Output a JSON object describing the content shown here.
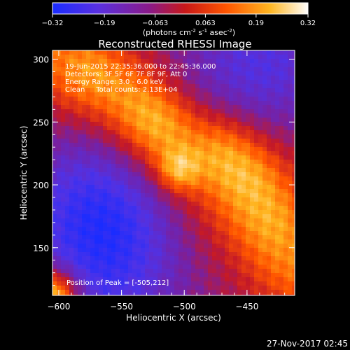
{
  "colorbar": {
    "ticks": [
      "-0.32",
      "-0.19",
      "-0.063",
      "0.063",
      "0.19",
      "0.32"
    ],
    "tick_values": [
      -0.32,
      -0.19,
      -0.063,
      0.063,
      0.19,
      0.32
    ],
    "range": [
      -0.32,
      0.32
    ],
    "units_pre": "(photons cm",
    "units_sup1": "-2",
    "units_mid": " s",
    "units_sup2": "-1",
    "units_mid2": " asec",
    "units_sup3": "-2",
    "units_post": ")"
  },
  "annotations": {
    "time_range": "19-Jun-2015 22:35:36.000 to 22:45:36.000",
    "detectors": "Detectors: 3F 5F 6F 7F 8F 9F, Att 0",
    "energy": "Energy Range: 3.0 - 6.0 keV",
    "clean": "Clean     Total counts: 2.13E+04",
    "peak": "Position of Peak = [-505,212]"
  },
  "footer": {
    "date": "27-Nov-2017 02:45"
  },
  "colors": {
    "colormap": [
      "#1a2cff",
      "#5a30e0",
      "#7a1d98",
      "#c0182a",
      "#ff5a00",
      "#ffb01c",
      "#ffffff"
    ]
  },
  "chart_data": {
    "type": "heatmap",
    "title": "Reconstructed RHESSI Image",
    "xlabel": "Heliocentric X (arcsec)",
    "ylabel": "Heliocentric Y (arcsec)",
    "xlim": [
      -605,
      -412
    ],
    "ylim": [
      112,
      307
    ],
    "x_ticks": [
      -600,
      -550,
      -500,
      -450
    ],
    "y_ticks": [
      150,
      200,
      250,
      300
    ],
    "x_tick_labels": [
      "−600",
      "−550",
      "−500",
      "−450"
    ],
    "y_tick_labels": [
      "150",
      "200",
      "250",
      "300"
    ],
    "peak": {
      "x": -505,
      "y": 212,
      "value": 0.32
    },
    "colorscale_range": [
      -0.32,
      0.32
    ],
    "features": [
      {
        "x": -505,
        "y": 212,
        "value": 0.32
      },
      {
        "x": -520,
        "y": 245,
        "value": 0.26
      },
      {
        "x": -470,
        "y": 228,
        "value": 0.22
      },
      {
        "x": -445,
        "y": 205,
        "value": 0.2
      },
      {
        "x": -575,
        "y": 290,
        "value": 0.18
      },
      {
        "x": -430,
        "y": 170,
        "value": 0.14
      },
      {
        "x": -540,
        "y": 270,
        "value": 0.16
      },
      {
        "x": -420,
        "y": 130,
        "value": 0.08
      },
      {
        "x": -470,
        "y": 280,
        "value": -0.12
      },
      {
        "x": -570,
        "y": 160,
        "value": -0.3
      },
      {
        "x": -560,
        "y": 210,
        "value": -0.24
      },
      {
        "x": -490,
        "y": 125,
        "value": -0.18
      },
      {
        "x": -600,
        "y": 120,
        "value": 0.05
      }
    ]
  }
}
